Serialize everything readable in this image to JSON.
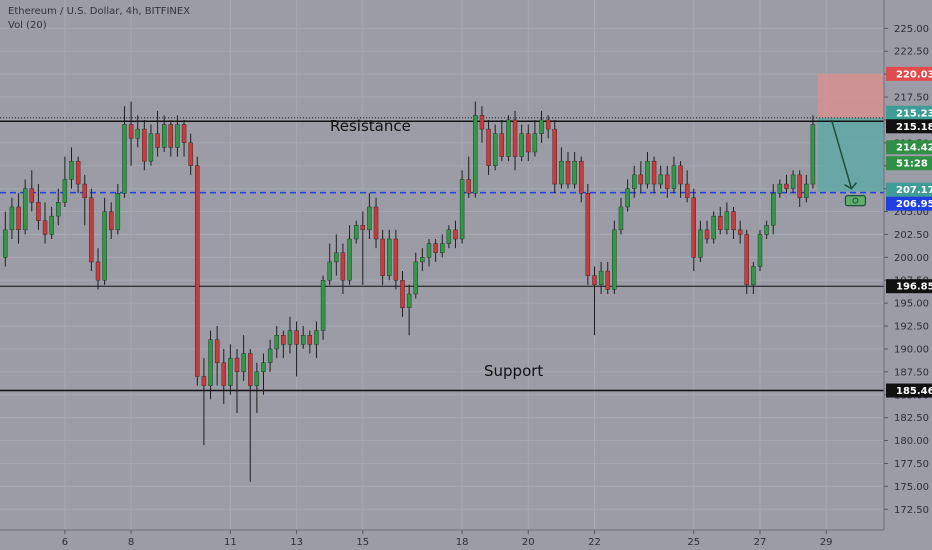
{
  "header": {
    "title": "Ethereum / U.S. Dollar, 4h, BITFINEX",
    "volume": "Vol (20)"
  },
  "colors": {
    "background": "#9b9ca6",
    "grid": "#a7a9b2",
    "up": "#2f9a45",
    "down": "#cc3a3a",
    "wick": "#1e1e1e",
    "sr_line": "#111111",
    "dashed": "#1f3fe0",
    "stop_zone": "#d89090",
    "target_zone": "#5fa9a5",
    "axis_bg": "#9b9ca6"
  },
  "chart_data": {
    "type": "candlestick",
    "instrument": "Ethereum / U.S. Dollar",
    "interval": "4h",
    "exchange": "BITFINEX",
    "ylim": [
      171.0,
      227.0
    ],
    "yticks": [
      "172.50",
      "175.00",
      "177.50",
      "180.00",
      "182.50",
      "185.00",
      "187.50",
      "190.00",
      "192.50",
      "195.00",
      "197.50",
      "200.00",
      "202.50",
      "205.00",
      "207.50",
      "210.00",
      "212.50",
      "215.00",
      "217.50",
      "220.00",
      "222.50",
      "225.00"
    ],
    "x_slots": 126,
    "xticks": [
      {
        "slot": 9,
        "label": "6"
      },
      {
        "slot": 19,
        "label": "8"
      },
      {
        "slot": 34,
        "label": "11"
      },
      {
        "slot": 44,
        "label": "13"
      },
      {
        "slot": 54,
        "label": "15"
      },
      {
        "slot": 69,
        "label": "18"
      },
      {
        "slot": 79,
        "label": "20"
      },
      {
        "slot": 89,
        "label": "22"
      },
      {
        "slot": 104,
        "label": "25"
      },
      {
        "slot": 114,
        "label": "27"
      },
      {
        "slot": 124,
        "label": "29"
      }
    ],
    "candles": [
      [
        0,
        200.0,
        203.0,
        199.0,
        205.0
      ],
      [
        1,
        203.0,
        205.5,
        202.0,
        206.5
      ],
      [
        2,
        205.5,
        203.0,
        201.5,
        207.0
      ],
      [
        3,
        203.0,
        207.5,
        202.5,
        208.5
      ],
      [
        4,
        207.5,
        206.0,
        205.0,
        209.5
      ],
      [
        5,
        206.0,
        204.0,
        203.0,
        208.0
      ],
      [
        6,
        204.0,
        202.5,
        201.5,
        206.0
      ],
      [
        7,
        202.5,
        204.5,
        202.0,
        205.5
      ],
      [
        8,
        204.5,
        206.0,
        203.5,
        207.5
      ],
      [
        9,
        206.0,
        208.5,
        205.5,
        211.0
      ],
      [
        10,
        208.5,
        210.5,
        207.5,
        212.0
      ],
      [
        11,
        210.5,
        208.0,
        207.0,
        211.0
      ],
      [
        12,
        208.0,
        206.5,
        203.5,
        209.0
      ],
      [
        13,
        206.5,
        199.5,
        198.5,
        207.5
      ],
      [
        14,
        199.5,
        197.5,
        196.5,
        201.0
      ],
      [
        15,
        197.5,
        205.0,
        197.0,
        206.5
      ],
      [
        16,
        205.0,
        203.0,
        202.0,
        206.0
      ],
      [
        17,
        203.0,
        207.0,
        202.5,
        208.0
      ],
      [
        18,
        207.0,
        214.5,
        206.5,
        216.5
      ],
      [
        19,
        214.5,
        213.0,
        210.0,
        217.0
      ],
      [
        20,
        213.0,
        214.0,
        212.0,
        215.5
      ],
      [
        21,
        214.0,
        210.5,
        209.5,
        215.0
      ],
      [
        22,
        210.5,
        213.5,
        210.0,
        214.5
      ],
      [
        23,
        213.5,
        212.0,
        211.0,
        216.0
      ],
      [
        24,
        212.0,
        214.5,
        211.5,
        215.5
      ],
      [
        25,
        214.5,
        212.0,
        211.0,
        215.0
      ],
      [
        26,
        212.0,
        214.5,
        211.0,
        215.5
      ],
      [
        27,
        214.5,
        212.5,
        211.0,
        215.0
      ],
      [
        28,
        212.5,
        210.0,
        209.0,
        213.5
      ],
      [
        29,
        210.0,
        187.0,
        186.0,
        211.0
      ],
      [
        30,
        187.0,
        186.0,
        179.5,
        189.0
      ],
      [
        31,
        186.0,
        191.0,
        184.5,
        192.0
      ],
      [
        32,
        191.0,
        188.5,
        186.0,
        192.5
      ],
      [
        33,
        188.5,
        186.0,
        184.0,
        190.0
      ],
      [
        34,
        186.0,
        189.0,
        185.0,
        190.5
      ],
      [
        35,
        189.0,
        187.5,
        183.0,
        190.0
      ],
      [
        36,
        187.5,
        189.5,
        186.5,
        191.5
      ],
      [
        37,
        189.5,
        186.0,
        175.5,
        190.0
      ],
      [
        38,
        186.0,
        187.5,
        183.0,
        188.5
      ],
      [
        39,
        187.5,
        188.5,
        185.0,
        189.5
      ],
      [
        40,
        188.5,
        190.0,
        187.5,
        191.0
      ],
      [
        41,
        190.0,
        191.5,
        189.0,
        192.5
      ],
      [
        42,
        191.5,
        190.5,
        189.0,
        192.0
      ],
      [
        43,
        190.5,
        192.0,
        189.5,
        193.5
      ],
      [
        44,
        192.0,
        190.5,
        187.0,
        193.0
      ],
      [
        45,
        190.5,
        191.5,
        190.0,
        192.5
      ],
      [
        46,
        191.5,
        190.5,
        189.5,
        192.0
      ],
      [
        47,
        190.5,
        192.0,
        189.0,
        193.0
      ],
      [
        48,
        192.0,
        197.5,
        191.0,
        198.0
      ],
      [
        49,
        197.5,
        199.5,
        197.0,
        201.5
      ],
      [
        50,
        199.5,
        200.5,
        198.0,
        202.5
      ],
      [
        51,
        200.5,
        197.5,
        196.0,
        201.5
      ],
      [
        52,
        197.5,
        202.0,
        197.0,
        203.5
      ],
      [
        53,
        202.0,
        203.5,
        201.5,
        204.0
      ],
      [
        54,
        203.5,
        203.0,
        197.0,
        205.0
      ],
      [
        55,
        203.0,
        205.5,
        202.0,
        207.0
      ],
      [
        56,
        205.5,
        202.0,
        201.0,
        206.5
      ],
      [
        57,
        202.0,
        198.0,
        197.0,
        203.0
      ],
      [
        58,
        198.0,
        202.0,
        197.5,
        203.0
      ],
      [
        59,
        202.0,
        197.5,
        196.5,
        203.0
      ],
      [
        60,
        197.5,
        194.5,
        193.5,
        198.5
      ],
      [
        61,
        194.5,
        196.0,
        191.5,
        197.0
      ],
      [
        62,
        196.0,
        199.5,
        195.5,
        200.5
      ],
      [
        63,
        199.5,
        200.0,
        198.5,
        201.0
      ],
      [
        64,
        200.0,
        201.5,
        199.0,
        202.0
      ],
      [
        65,
        201.5,
        200.5,
        199.5,
        202.0
      ],
      [
        66,
        200.5,
        201.5,
        200.0,
        202.5
      ],
      [
        67,
        201.5,
        203.0,
        201.0,
        203.5
      ],
      [
        68,
        203.0,
        202.0,
        201.0,
        204.0
      ],
      [
        69,
        202.0,
        208.5,
        201.5,
        209.5
      ],
      [
        70,
        208.5,
        207.0,
        206.5,
        211.0
      ],
      [
        71,
        207.0,
        215.5,
        206.5,
        217.0
      ],
      [
        72,
        215.5,
        214.0,
        212.5,
        216.5
      ],
      [
        73,
        214.0,
        210.0,
        209.0,
        215.0
      ],
      [
        74,
        210.0,
        213.5,
        209.5,
        214.5
      ],
      [
        75,
        213.5,
        211.0,
        210.5,
        215.0
      ],
      [
        76,
        211.0,
        215.0,
        210.5,
        215.5
      ],
      [
        77,
        215.0,
        211.0,
        209.5,
        216.0
      ],
      [
        78,
        211.0,
        213.5,
        210.5,
        214.5
      ],
      [
        79,
        213.5,
        211.5,
        210.5,
        214.5
      ],
      [
        80,
        211.5,
        213.5,
        211.0,
        215.0
      ],
      [
        81,
        213.5,
        215.0,
        212.5,
        216.0
      ],
      [
        82,
        215.0,
        214.0,
        213.0,
        215.5
      ],
      [
        83,
        214.0,
        208.0,
        207.0,
        215.0
      ],
      [
        84,
        208.0,
        210.5,
        207.5,
        212.0
      ],
      [
        85,
        210.5,
        208.0,
        207.5,
        211.5
      ],
      [
        86,
        208.0,
        210.5,
        207.5,
        211.5
      ],
      [
        87,
        210.5,
        207.0,
        206.0,
        211.0
      ],
      [
        88,
        207.0,
        198.0,
        197.0,
        208.0
      ],
      [
        89,
        198.0,
        197.0,
        191.5,
        199.0
      ],
      [
        90,
        197.0,
        198.5,
        196.0,
        199.5
      ],
      [
        91,
        198.5,
        196.5,
        196.0,
        199.5
      ],
      [
        92,
        196.5,
        203.0,
        196.0,
        204.0
      ],
      [
        93,
        203.0,
        205.5,
        202.5,
        206.5
      ],
      [
        94,
        205.5,
        207.5,
        205.0,
        208.5
      ],
      [
        95,
        207.5,
        209.0,
        206.5,
        210.0
      ],
      [
        96,
        209.0,
        208.0,
        207.0,
        210.5
      ],
      [
        97,
        208.0,
        210.5,
        207.5,
        211.5
      ],
      [
        98,
        210.5,
        208.0,
        207.0,
        211.0
      ],
      [
        99,
        208.0,
        209.0,
        207.5,
        210.0
      ],
      [
        100,
        209.0,
        207.5,
        206.5,
        210.0
      ],
      [
        101,
        207.5,
        210.0,
        207.0,
        211.0
      ],
      [
        102,
        210.0,
        208.0,
        206.5,
        210.5
      ],
      [
        103,
        208.0,
        206.5,
        206.0,
        209.5
      ],
      [
        104,
        206.5,
        200.0,
        198.5,
        207.5
      ],
      [
        105,
        200.0,
        203.0,
        199.5,
        204.0
      ],
      [
        106,
        203.0,
        202.0,
        201.5,
        204.0
      ],
      [
        107,
        202.0,
        204.5,
        201.5,
        205.0
      ],
      [
        108,
        204.5,
        203.0,
        202.5,
        205.5
      ],
      [
        109,
        203.0,
        205.0,
        202.5,
        206.0
      ],
      [
        110,
        205.0,
        203.0,
        202.0,
        205.5
      ],
      [
        111,
        203.0,
        202.5,
        201.5,
        204.0
      ],
      [
        112,
        202.5,
        197.0,
        196.0,
        203.0
      ],
      [
        113,
        197.0,
        199.0,
        196.0,
        199.5
      ],
      [
        114,
        199.0,
        202.5,
        198.5,
        203.0
      ],
      [
        115,
        202.5,
        203.5,
        202.0,
        204.0
      ],
      [
        116,
        203.5,
        207.0,
        202.5,
        208.0
      ],
      [
        117,
        207.0,
        208.0,
        206.5,
        208.5
      ],
      [
        118,
        208.0,
        207.5,
        207.0,
        209.0
      ],
      [
        119,
        207.5,
        209.0,
        207.0,
        209.5
      ],
      [
        120,
        209.0,
        206.5,
        205.5,
        209.5
      ],
      [
        121,
        206.5,
        208.0,
        206.0,
        209.0
      ],
      [
        122,
        208.0,
        214.5,
        207.5,
        215.5
      ]
    ],
    "levels": {
      "resistance": 215.18,
      "support": 185.46,
      "lower": 196.85,
      "dashed_a": 207.17,
      "dashed_b": 206.95,
      "dotted": 215.23,
      "stop": 220.03,
      "price": 214.42
    },
    "annotations": {
      "resistance_label": "Resistance",
      "support_label": "Support"
    },
    "position": {
      "slot_start": 123,
      "slot_end": 126,
      "entry": 215.23,
      "stop": 220.03,
      "target": 207.17
    },
    "arrow": {
      "from": {
        "slot": 123,
        "price": 215.0
      },
      "to": {
        "slot": 126,
        "price": 207.5
      }
    },
    "axis_tags": [
      {
        "label": "220.03",
        "price": 220.03,
        "bg": "#e24b4b",
        "fg": "#ffffff"
      },
      {
        "label": "215.23",
        "price": 215.23,
        "bg": "#3e9d96",
        "fg": "#ffffff",
        "offset": -5
      },
      {
        "label": "215.18",
        "price": 215.18,
        "bg": "#111111",
        "fg": "#ffffff",
        "offset": 8
      },
      {
        "label": "214.42",
        "price": 214.42,
        "bg": "#2f8f44",
        "fg": "#ffffff",
        "offset": 22
      },
      {
        "label": "51:28",
        "price": 214.42,
        "bg": "#2f8f44",
        "fg": "#ffffff",
        "offset": 38
      },
      {
        "label": "207.17",
        "price": 207.17,
        "bg": "#3e9d96",
        "fg": "#ffffff",
        "offset": -2
      },
      {
        "label": "206.95",
        "price": 206.95,
        "bg": "#1f3fe0",
        "fg": "#ffffff",
        "offset": 10
      },
      {
        "label": "196.85",
        "price": 196.85,
        "bg": "#111111",
        "fg": "#ffffff"
      },
      {
        "label": "185.46",
        "price": 185.46,
        "bg": "#111111",
        "fg": "#ffffff"
      }
    ]
  }
}
